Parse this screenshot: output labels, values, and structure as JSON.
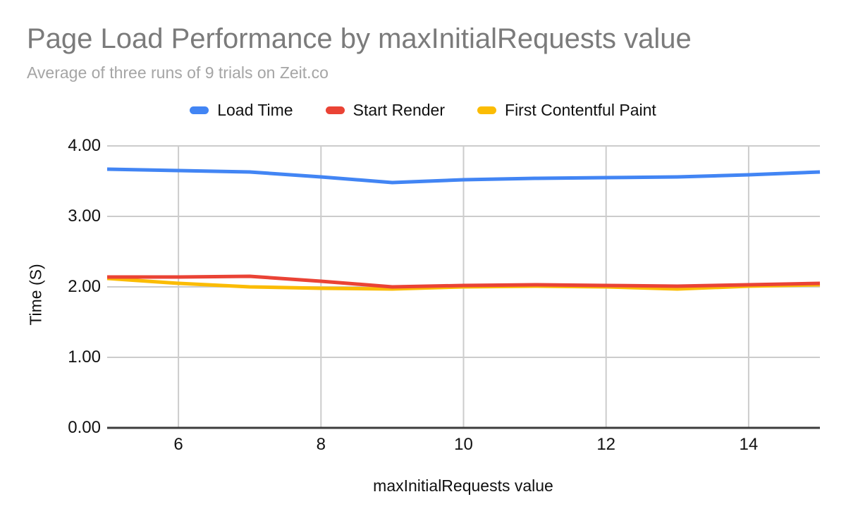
{
  "chart_data": {
    "type": "line",
    "title": "Page Load Performance by maxInitialRequests value",
    "subtitle": "Average of three runs of 9 trials on Zeit.co",
    "xlabel": "maxInitialRequests value",
    "ylabel": "Time (S)",
    "x": [
      5,
      6,
      7,
      8,
      9,
      10,
      11,
      12,
      13,
      14,
      15
    ],
    "xlim": [
      5,
      15
    ],
    "ylim": [
      0,
      4
    ],
    "xticks": [
      {
        "v": 6,
        "label": "6"
      },
      {
        "v": 8,
        "label": "8"
      },
      {
        "v": 10,
        "label": "10"
      },
      {
        "v": 12,
        "label": "12"
      },
      {
        "v": 14,
        "label": "14"
      }
    ],
    "yticks": [
      {
        "v": 0,
        "label": "0.00"
      },
      {
        "v": 1,
        "label": "1.00"
      },
      {
        "v": 2,
        "label": "2.00"
      },
      {
        "v": 3,
        "label": "3.00"
      },
      {
        "v": 4,
        "label": "4.00"
      }
    ],
    "grid": true,
    "legend_position": "top",
    "series": [
      {
        "name": "Load Time",
        "color": "#4285F4",
        "values": [
          3.67,
          3.65,
          3.63,
          3.56,
          3.48,
          3.52,
          3.54,
          3.55,
          3.56,
          3.59,
          3.63
        ]
      },
      {
        "name": "Start Render",
        "color": "#EA4335",
        "values": [
          2.14,
          2.14,
          2.15,
          2.08,
          2.0,
          2.02,
          2.03,
          2.02,
          2.01,
          2.03,
          2.05
        ]
      },
      {
        "name": "First Contentful Paint",
        "color": "#FBBC04",
        "values": [
          2.12,
          2.05,
          2.0,
          1.98,
          1.97,
          2.0,
          2.01,
          2.0,
          1.97,
          2.01,
          2.03
        ]
      }
    ],
    "colors": {
      "gridline": "#cccccc",
      "axis_line": "#3c3c3c",
      "title": "#7b7b7b",
      "subtitle": "#a5a5a5",
      "tick_text": "#111111"
    }
  }
}
